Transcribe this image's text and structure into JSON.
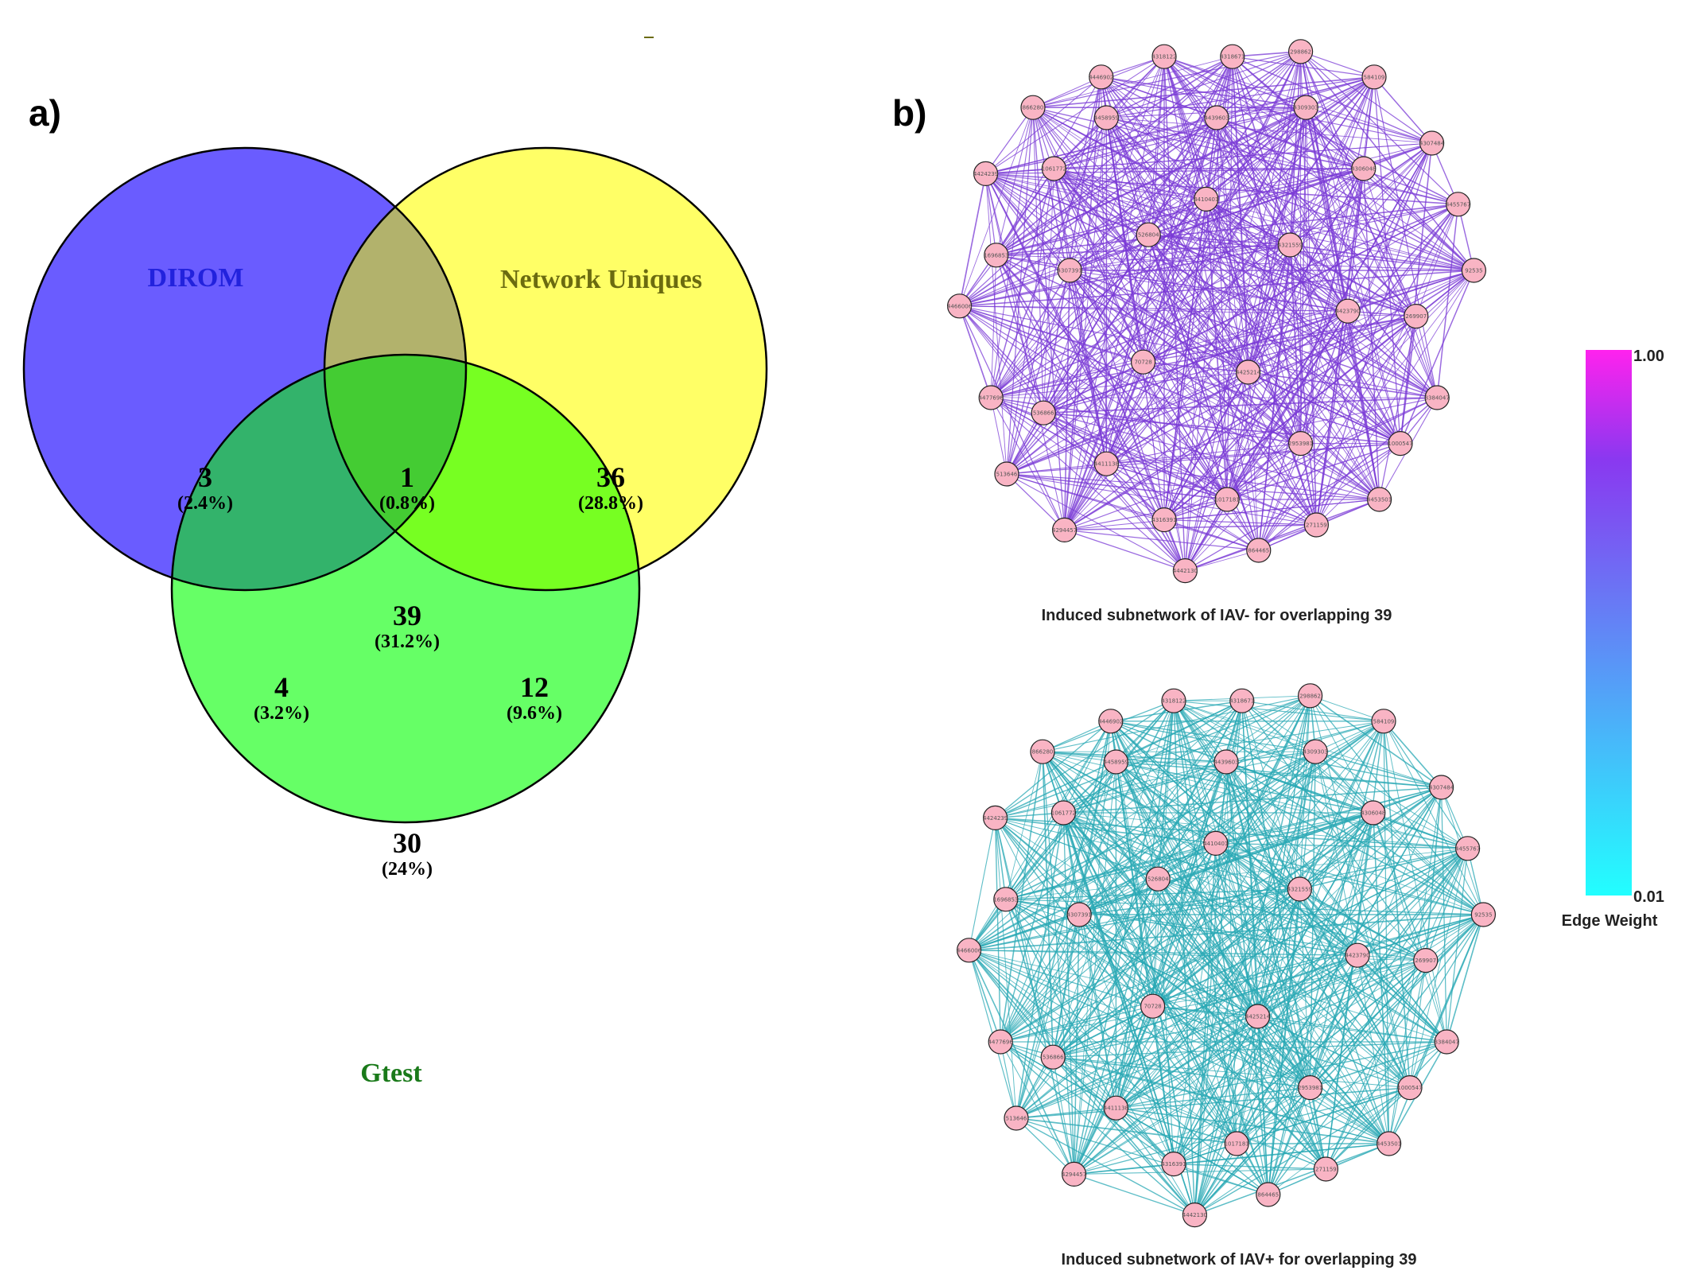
{
  "panels": {
    "a": "a)",
    "b": "b)"
  },
  "venn": {
    "sets": [
      {
        "name": "DIROM",
        "color": "#2222dd",
        "fill": "#6a5cff"
      },
      {
        "name": "Network Uniques",
        "color": "#6b6b10",
        "fill": "#ffff66"
      },
      {
        "name": "Gtest",
        "color": "#1a7a1a",
        "fill": "#66ff66"
      }
    ],
    "regions": [
      {
        "id": "dirom_only",
        "count": "3",
        "pct": "(2.4%)"
      },
      {
        "id": "dirom_network",
        "count": "1",
        "pct": "(0.8%)"
      },
      {
        "id": "network_only",
        "count": "36",
        "pct": "(28.8%)"
      },
      {
        "id": "all_three",
        "count": "39",
        "pct": "(31.2%)"
      },
      {
        "id": "dirom_gtest",
        "count": "4",
        "pct": "(3.2%)"
      },
      {
        "id": "network_gtest",
        "count": "12",
        "pct": "(9.6%)"
      },
      {
        "id": "gtest_only",
        "count": "30",
        "pct": "(24%)"
      }
    ],
    "region_fills": {
      "dirom_network": "#b2b26c",
      "dirom_gtest": "#33b36b",
      "network_gtest": "#77ff22",
      "all_three": "#44cc33"
    }
  },
  "networks": {
    "nodes": [
      "4318122",
      "4318671",
      "298862",
      "4446902",
      "584109",
      "866280",
      "4309303",
      "4458959",
      "4439603",
      "4307484",
      "4424239",
      "1061772",
      "4306048",
      "4410401",
      "4455767",
      "1696853",
      "526804",
      "4321559",
      "92535",
      "4307391",
      "4466006",
      "4423790",
      "269907",
      "70728",
      "4425214",
      "4477696",
      "3384047",
      "536866",
      "2953981",
      "1000547",
      "4411138",
      "513646",
      "1017181",
      "4453501",
      "4316391",
      "271159",
      "4294457",
      "864465",
      "4442130"
    ],
    "top": {
      "caption": "Induced subnetwork of IAV- for overlapping 39",
      "edge_color": "#7a3ad6"
    },
    "bottom": {
      "caption": "Induced subnetwork of IAV+ for overlapping 39",
      "edge_color": "#28a8b4"
    },
    "node_fill": "#f9b4c4"
  },
  "colorbar": {
    "max_label": "1.00",
    "min_label": "0.01",
    "title": "Edge Weight",
    "color_high": "#ff22ee",
    "color_mid": "#8a38f0",
    "color_low": "#22ffff"
  }
}
